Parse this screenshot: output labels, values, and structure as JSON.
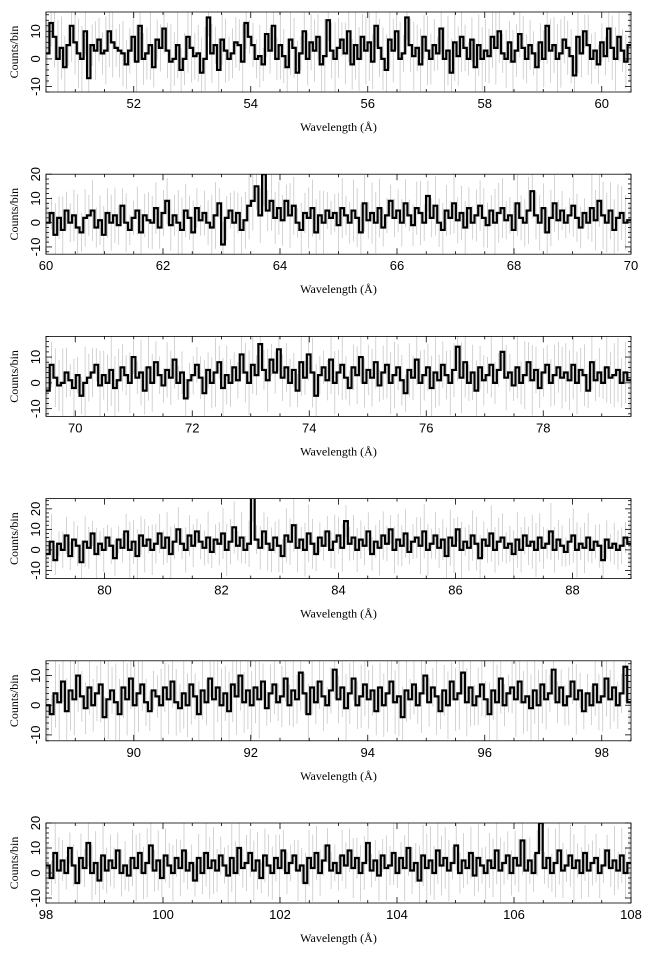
{
  "chart_data": [
    {
      "type": "line",
      "xlim": [
        50.5,
        60.5
      ],
      "ylim": [
        -12,
        17
      ],
      "xticks": [
        52,
        54,
        56,
        58,
        60
      ],
      "yticks": [
        -10,
        0,
        10
      ],
      "xlabel": "Wavelength (Å)",
      "ylabel": "Counts/bin",
      "grid": false,
      "series": [
        {
          "values": [
            2,
            13,
            8,
            0,
            4,
            -3,
            5,
            12,
            6,
            2,
            0,
            10,
            -7,
            5,
            3,
            7,
            2,
            3,
            10,
            6,
            4,
            3,
            2,
            -2,
            3,
            8,
            -1,
            12,
            0,
            2,
            5,
            -3,
            7,
            4,
            11,
            3,
            -1,
            0,
            5,
            -4,
            0,
            8,
            4,
            1,
            2,
            -5,
            0,
            15,
            2,
            5,
            -4,
            7,
            3,
            0,
            2,
            6,
            5,
            -1,
            13,
            8,
            5,
            0,
            1,
            -2,
            9,
            3,
            12,
            0,
            5,
            1,
            -3,
            7,
            4,
            -5,
            2,
            10,
            0,
            6,
            3,
            8,
            -2,
            1,
            14,
            3,
            0,
            4,
            7,
            2,
            10,
            -2,
            5,
            0,
            8,
            3,
            6,
            -1,
            12,
            4,
            0,
            -4,
            7,
            3,
            10,
            0,
            2,
            15,
            5,
            1,
            4,
            -2,
            8,
            3,
            0,
            5,
            2,
            11,
            0,
            3,
            -5,
            6,
            1,
            8,
            4,
            0,
            7,
            -3,
            5,
            0,
            3,
            1,
            8,
            4,
            10,
            2,
            0,
            6,
            -1,
            3,
            9,
            4,
            0,
            5,
            2,
            -3,
            6,
            0,
            12,
            3,
            5,
            0,
            2,
            7,
            4,
            1,
            -6,
            8,
            2,
            10,
            5,
            0,
            3,
            -2,
            6,
            1,
            11,
            4,
            0,
            8,
            3,
            -1,
            5
          ]
        }
      ]
    },
    {
      "type": "line",
      "xlim": [
        60,
        70
      ],
      "ylim": [
        -13,
        20
      ],
      "xticks": [
        60,
        62,
        64,
        66,
        68,
        70
      ],
      "yticks": [
        -10,
        0,
        10,
        20
      ],
      "xlabel": "Wavelength (Å)",
      "ylabel": "Counts/bin",
      "grid": false,
      "series": [
        {
          "values": [
            0,
            4,
            -5,
            2,
            -3,
            5,
            0,
            3,
            -2,
            -4,
            2,
            3,
            5,
            -2,
            1,
            -5,
            4,
            0,
            3,
            -1,
            7,
            0,
            -3,
            2,
            5,
            -4,
            3,
            1,
            0,
            6,
            -2,
            4,
            9,
            -1,
            3,
            0,
            -3,
            5,
            2,
            -4,
            6,
            1,
            4,
            0,
            -2,
            3,
            8,
            -9,
            2,
            5,
            0,
            4,
            -3,
            1,
            7,
            9,
            15,
            3,
            20,
            5,
            9,
            2,
            6,
            1,
            9,
            3,
            7,
            0,
            -3,
            4,
            2,
            6,
            -4,
            3,
            0,
            5,
            2,
            4,
            -1,
            6,
            3,
            0,
            5,
            2,
            -4,
            8,
            1,
            4,
            0,
            6,
            -2,
            3,
            9,
            2,
            5,
            0,
            8,
            3,
            -1,
            6,
            4,
            0,
            11,
            2,
            7,
            0,
            -3,
            5,
            2,
            8,
            1,
            4,
            -2,
            6,
            0,
            3,
            7,
            2,
            -1,
            5,
            0,
            4,
            6,
            1,
            3,
            -3,
            8,
            2,
            0,
            5,
            13,
            3,
            0,
            6,
            -4,
            2,
            8,
            1,
            5,
            0,
            3,
            7,
            2,
            -2,
            4,
            0,
            6,
            1,
            9,
            3,
            0,
            5,
            -3,
            2,
            4,
            0,
            1
          ]
        }
      ]
    },
    {
      "type": "line",
      "xlim": [
        69.5,
        79.5
      ],
      "ylim": [
        -13,
        18
      ],
      "xticks": [
        70,
        72,
        74,
        76,
        78
      ],
      "yticks": [
        -10,
        0,
        10
      ],
      "xlabel": "Wavelength (Å)",
      "ylabel": "Counts/bin",
      "grid": false,
      "series": [
        {
          "values": [
            -3,
            7,
            2,
            -1,
            0,
            4,
            1,
            -2,
            3,
            -5,
            0,
            2,
            4,
            7,
            -1,
            3,
            0,
            5,
            -2,
            1,
            6,
            3,
            0,
            10,
            2,
            4,
            -3,
            6,
            0,
            8,
            3,
            -1,
            5,
            2,
            9,
            0,
            4,
            -6,
            1,
            3,
            7,
            2,
            -4,
            5,
            0,
            4,
            8,
            -2,
            3,
            0,
            6,
            1,
            11,
            4,
            0,
            7,
            3,
            15,
            5,
            1,
            9,
            4,
            13,
            2,
            6,
            0,
            5,
            -3,
            8,
            2,
            11,
            4,
            -5,
            3,
            6,
            1,
            9,
            0,
            4,
            7,
            2,
            -2,
            6,
            3,
            10,
            0,
            5,
            2,
            8,
            -1,
            4,
            7,
            0,
            3,
            6,
            1,
            -4,
            5,
            2,
            9,
            0,
            3,
            6,
            -2,
            4,
            1,
            7,
            3,
            0,
            5,
            14,
            2,
            8,
            0,
            4,
            -3,
            6,
            1,
            3,
            7,
            0,
            5,
            12,
            2,
            4,
            -1,
            6,
            0,
            3,
            8,
            1,
            5,
            -2,
            4,
            7,
            0,
            3,
            6,
            2,
            4,
            1,
            7,
            0,
            5,
            3,
            -3,
            8,
            1,
            4,
            0,
            6,
            2,
            3,
            5,
            0,
            4,
            1
          ]
        }
      ]
    },
    {
      "type": "line",
      "xlim": [
        79,
        89
      ],
      "ylim": [
        -14,
        25
      ],
      "xticks": [
        80,
        82,
        84,
        86,
        88
      ],
      "yticks": [
        -10,
        0,
        10,
        20
      ],
      "xlabel": "Wavelength (Å)",
      "ylabel": "Counts/bin",
      "grid": false,
      "series": [
        {
          "values": [
            -2,
            4,
            -5,
            3,
            0,
            7,
            -3,
            5,
            2,
            -6,
            4,
            1,
            8,
            -2,
            3,
            0,
            6,
            2,
            -4,
            5,
            1,
            9,
            0,
            4,
            -3,
            7,
            2,
            5,
            0,
            3,
            8,
            1,
            6,
            -2,
            4,
            10,
            3,
            0,
            7,
            2,
            9,
            4,
            1,
            6,
            -1,
            5,
            3,
            8,
            0,
            4,
            11,
            2,
            6,
            0,
            3,
            26,
            5,
            1,
            9,
            3,
            0,
            6,
            2,
            -3,
            7,
            4,
            12,
            1,
            5,
            0,
            8,
            3,
            -2,
            6,
            2,
            9,
            0,
            4,
            7,
            1,
            14,
            3,
            6,
            0,
            5,
            2,
            9,
            -2,
            4,
            1,
            7,
            3,
            10,
            0,
            5,
            2,
            8,
            -1,
            4,
            6,
            2,
            9,
            0,
            3,
            7,
            1,
            5,
            -3,
            6,
            2,
            10,
            0,
            4,
            1,
            7,
            3,
            -4,
            5,
            2,
            8,
            0,
            4,
            6,
            1,
            3,
            -2,
            5,
            0,
            7,
            2,
            4,
            0,
            6,
            1,
            3,
            9,
            0,
            5,
            2,
            -1,
            4,
            7,
            0,
            3,
            1,
            6,
            0,
            4,
            2,
            -5,
            5,
            1,
            3,
            0,
            2,
            6,
            3
          ]
        }
      ]
    },
    {
      "type": "line",
      "xlim": [
        88.5,
        98.5
      ],
      "ylim": [
        -12,
        15
      ],
      "xticks": [
        90,
        92,
        94,
        96,
        98
      ],
      "yticks": [
        -10,
        0,
        10
      ],
      "xlabel": "Wavelength (Å)",
      "ylabel": "Counts/bin",
      "grid": false,
      "series": [
        {
          "values": [
            0,
            -3,
            4,
            1,
            8,
            -2,
            5,
            2,
            10,
            3,
            -1,
            6,
            0,
            4,
            7,
            -4,
            2,
            5,
            1,
            -3,
            6,
            2,
            9,
            0,
            4,
            7,
            1,
            -2,
            5,
            3,
            0,
            6,
            2,
            8,
            1,
            -1,
            4,
            0,
            7,
            3,
            -3,
            5,
            1,
            9,
            2,
            6,
            0,
            4,
            -2,
            7,
            3,
            10,
            1,
            5,
            0,
            6,
            2,
            8,
            -1,
            4,
            7,
            1,
            3,
            9,
            0,
            5,
            2,
            11,
            4,
            -3,
            6,
            1,
            8,
            3,
            0,
            5,
            12,
            2,
            6,
            -1,
            4,
            9,
            0,
            3,
            7,
            2,
            5,
            -2,
            6,
            0,
            4,
            8,
            1,
            3,
            -4,
            5,
            2,
            7,
            0,
            4,
            10,
            1,
            6,
            3,
            -2,
            5,
            0,
            8,
            2,
            4,
            11,
            1,
            6,
            0,
            3,
            7,
            2,
            -3,
            5,
            1,
            9,
            0,
            4,
            6,
            2,
            8,
            1,
            3,
            -1,
            5,
            0,
            7,
            2,
            4,
            12,
            1,
            6,
            0,
            3,
            8,
            2,
            5,
            -2,
            4,
            0,
            7,
            1,
            3,
            9,
            2,
            6,
            0,
            4,
            13,
            1
          ]
        }
      ]
    },
    {
      "type": "line",
      "xlim": [
        98,
        108
      ],
      "ylim": [
        -12,
        20
      ],
      "xticks": [
        98,
        100,
        102,
        104,
        106,
        108
      ],
      "yticks": [
        -10,
        0,
        10,
        20
      ],
      "xlabel": "Wavelength (Å)",
      "ylabel": "Counts/bin",
      "grid": false,
      "series": [
        {
          "values": [
            3,
            -2,
            8,
            1,
            5,
            0,
            10,
            3,
            -4,
            6,
            2,
            12,
            0,
            4,
            -3,
            7,
            1,
            5,
            2,
            9,
            0,
            3,
            -1,
            6,
            2,
            8,
            0,
            4,
            11,
            1,
            5,
            -2,
            7,
            3,
            0,
            6,
            2,
            9,
            1,
            4,
            -3,
            6,
            0,
            8,
            2,
            5,
            1,
            7,
            3,
            -1,
            6,
            0,
            10,
            2,
            4,
            8,
            1,
            5,
            -2,
            7,
            3,
            0,
            6,
            2,
            9,
            0,
            4,
            7,
            1,
            3,
            -4,
            6,
            2,
            8,
            0,
            5,
            11,
            1,
            4,
            0,
            7,
            3,
            9,
            2,
            6,
            0,
            4,
            12,
            1,
            5,
            -1,
            7,
            2,
            3,
            8,
            0,
            6,
            2,
            10,
            1,
            4,
            -3,
            7,
            2,
            5,
            0,
            9,
            3,
            6,
            1,
            4,
            11,
            0,
            5,
            2,
            8,
            -1,
            6,
            3,
            0,
            5,
            2,
            9,
            1,
            4,
            7,
            0,
            6,
            3,
            13,
            1,
            5,
            0,
            8,
            20,
            2,
            6,
            0,
            4,
            9,
            1,
            3,
            7,
            2,
            5,
            0,
            8,
            1,
            4,
            6,
            0,
            3,
            9,
            2,
            5,
            1,
            7,
            0,
            4
          ]
        }
      ]
    }
  ]
}
